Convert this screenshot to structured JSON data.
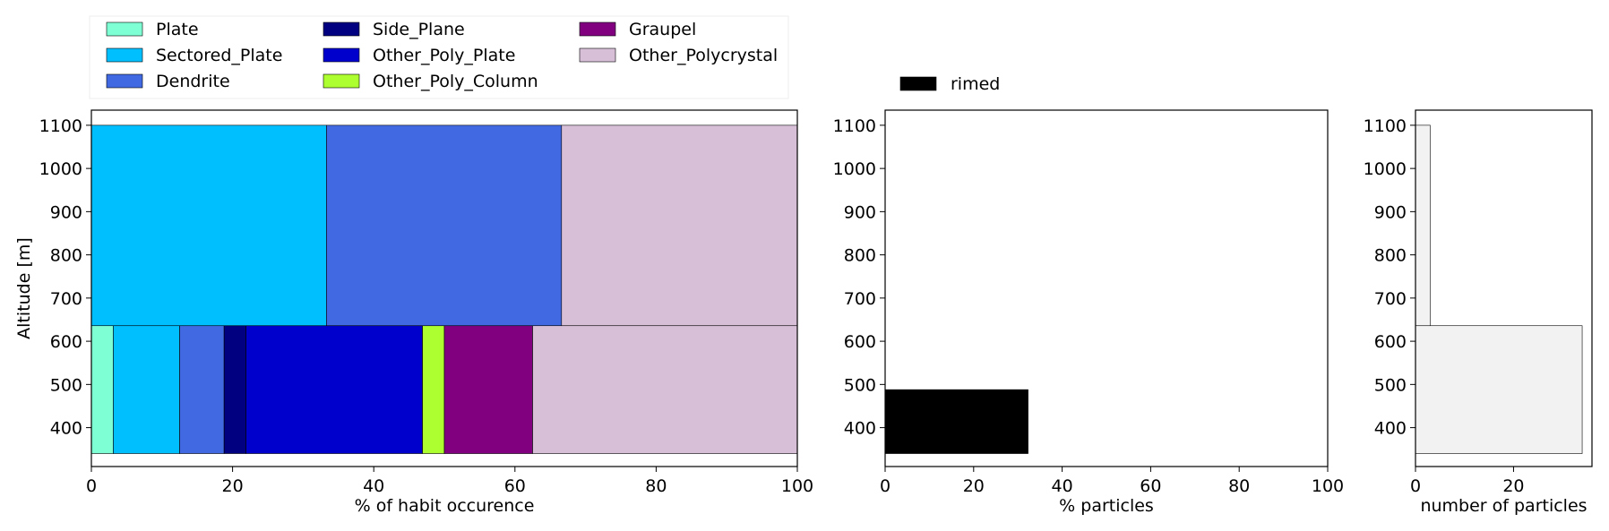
{
  "chart_data": [
    {
      "type": "bar",
      "orientation": "horizontal-stacked",
      "xlabel": "% of habit occurence",
      "ylabel": "Altitude [m]",
      "xlim": [
        0,
        100
      ],
      "ylim": [
        310,
        1135
      ],
      "xticks": [
        "0",
        "20",
        "40",
        "60",
        "80",
        "100"
      ],
      "yticks": [
        "400",
        "500",
        "600",
        "700",
        "800",
        "900",
        "1000",
        "1100"
      ],
      "legend_position": "top",
      "legend": [
        "Plate",
        "Sectored_Plate",
        "Dendrite",
        "Side_Plane",
        "Other_Poly_Plate",
        "Other_Poly_Column",
        "Graupel",
        "Other_Polycrystal"
      ],
      "colors": {
        "Plate": "#7fffd4",
        "Sectored_Plate": "#00bfff",
        "Dendrite": "#4169e1",
        "Side_Plane": "#000080",
        "Other_Poly_Plate": "#0000cd",
        "Other_Poly_Column": "#adff2f",
        "Graupel": "#800080",
        "Other_Polycrystal": "#d8bfd8"
      },
      "bins": [
        {
          "altitude_range": [
            340,
            636
          ],
          "values": {
            "Plate": 3.1,
            "Sectored_Plate": 9.4,
            "Dendrite": 6.3,
            "Side_Plane": 3.1,
            "Other_Poly_Plate": 25.0,
            "Other_Poly_Column": 3.1,
            "Graupel": 12.5,
            "Other_Polycrystal": 37.5
          }
        },
        {
          "altitude_range": [
            636,
            1100
          ],
          "values": {
            "Plate": 0,
            "Sectored_Plate": 33.3,
            "Dendrite": 33.3,
            "Side_Plane": 0,
            "Other_Poly_Plate": 0,
            "Other_Poly_Column": 0,
            "Graupel": 0,
            "Other_Polycrystal": 33.4
          }
        }
      ]
    },
    {
      "type": "bar",
      "orientation": "horizontal",
      "xlabel": "% particles",
      "ylabel": "",
      "xlim": [
        0,
        100
      ],
      "ylim": [
        310,
        1135
      ],
      "xticks": [
        "0",
        "20",
        "40",
        "60",
        "80",
        "100"
      ],
      "yticks": [
        "400",
        "500",
        "600",
        "700",
        "800",
        "900",
        "1000",
        "1100"
      ],
      "legend_position": "top-left",
      "legend": [
        "rimed"
      ],
      "colors": {
        "rimed": "#000000"
      },
      "bins": [
        {
          "altitude_range": [
            340,
            488
          ],
          "values": {
            "rimed": 32.3
          }
        }
      ]
    },
    {
      "type": "bar",
      "orientation": "horizontal",
      "xlabel": "number of particles",
      "ylabel": "",
      "xlim": [
        0,
        36
      ],
      "ylim": [
        310,
        1135
      ],
      "xticks": [
        "0",
        "20"
      ],
      "yticks": [
        "400",
        "500",
        "600",
        "700",
        "800",
        "900",
        "1000",
        "1100"
      ],
      "colors": {
        "count": "#f2f2f2"
      },
      "bins": [
        {
          "altitude_range": [
            340,
            636
          ],
          "values": {
            "count": 34
          }
        },
        {
          "altitude_range": [
            636,
            1100
          ],
          "values": {
            "count": 3
          }
        }
      ]
    }
  ]
}
